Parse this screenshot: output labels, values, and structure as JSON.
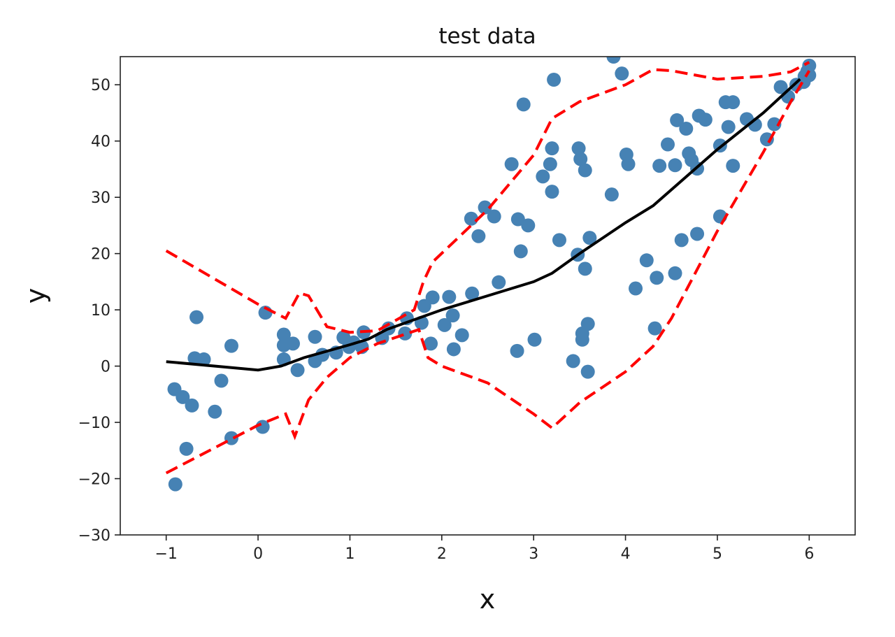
{
  "chart_data": {
    "type": "scatter",
    "title": "test data",
    "xlabel": "x",
    "ylabel": "y",
    "xlim": [
      -1.5,
      6.5
    ],
    "ylim": [
      -30,
      55
    ],
    "xticks": [
      -1,
      0,
      1,
      2,
      3,
      4,
      5,
      6
    ],
    "yticks": [
      -30,
      -20,
      -10,
      0,
      10,
      20,
      30,
      40,
      50
    ],
    "xtick_labels": [
      "−1",
      "0",
      "1",
      "2",
      "3",
      "4",
      "5",
      "6"
    ],
    "ytick_labels": [
      "−30",
      "−20",
      "−10",
      "0",
      "10",
      "20",
      "30",
      "40",
      "50"
    ],
    "grid": false,
    "colors": {
      "points": "#4682b4",
      "fit": "#000000",
      "bounds": "#ff0000"
    },
    "points": [
      [
        -0.9,
        -21.0
      ],
      [
        -0.91,
        -4.1
      ],
      [
        -0.82,
        -5.5
      ],
      [
        -0.72,
        -7.0
      ],
      [
        -0.78,
        -14.7
      ],
      [
        -0.67,
        8.7
      ],
      [
        -0.69,
        1.4
      ],
      [
        -0.59,
        1.2
      ],
      [
        -0.47,
        -8.1
      ],
      [
        -0.4,
        -2.6
      ],
      [
        -0.29,
        3.6
      ],
      [
        -0.29,
        -12.8
      ],
      [
        0.05,
        -10.8
      ],
      [
        0.08,
        9.5
      ],
      [
        0.28,
        5.6
      ],
      [
        0.28,
        3.7
      ],
      [
        0.38,
        4.0
      ],
      [
        0.28,
        1.2
      ],
      [
        0.43,
        -0.7
      ],
      [
        0.62,
        5.2
      ],
      [
        0.62,
        0.9
      ],
      [
        0.7,
        2.0
      ],
      [
        0.85,
        2.4
      ],
      [
        0.93,
        5.1
      ],
      [
        0.99,
        3.4
      ],
      [
        1.04,
        4.2
      ],
      [
        1.13,
        3.4
      ],
      [
        1.15,
        6.0
      ],
      [
        1.35,
        5.0
      ],
      [
        1.42,
        6.7
      ],
      [
        1.6,
        5.8
      ],
      [
        1.62,
        8.5
      ],
      [
        1.78,
        7.7
      ],
      [
        1.81,
        10.7
      ],
      [
        1.9,
        12.2
      ],
      [
        1.88,
        4.0
      ],
      [
        2.03,
        7.3
      ],
      [
        2.08,
        12.3
      ],
      [
        2.12,
        9.0
      ],
      [
        2.13,
        3.0
      ],
      [
        2.22,
        5.5
      ],
      [
        2.33,
        12.9
      ],
      [
        2.32,
        26.2
      ],
      [
        2.4,
        23.1
      ],
      [
        2.47,
        28.2
      ],
      [
        2.57,
        26.6
      ],
      [
        2.62,
        14.9
      ],
      [
        2.76,
        35.9
      ],
      [
        2.82,
        2.7
      ],
      [
        2.83,
        26.1
      ],
      [
        2.86,
        20.4
      ],
      [
        2.89,
        46.5
      ],
      [
        2.94,
        25.0
      ],
      [
        3.01,
        4.7
      ],
      [
        3.1,
        33.7
      ],
      [
        3.18,
        35.9
      ],
      [
        3.2,
        38.7
      ],
      [
        3.2,
        31.0
      ],
      [
        3.22,
        50.9
      ],
      [
        3.28,
        22.4
      ],
      [
        3.43,
        0.9
      ],
      [
        3.48,
        19.8
      ],
      [
        3.49,
        38.7
      ],
      [
        3.51,
        36.8
      ],
      [
        3.53,
        5.8
      ],
      [
        3.53,
        4.7
      ],
      [
        3.56,
        34.8
      ],
      [
        3.56,
        17.3
      ],
      [
        3.59,
        7.5
      ],
      [
        3.59,
        -1.0
      ],
      [
        3.61,
        22.8
      ],
      [
        3.85,
        30.5
      ],
      [
        3.87,
        55.0
      ],
      [
        3.96,
        52.0
      ],
      [
        4.01,
        37.6
      ],
      [
        4.03,
        35.9
      ],
      [
        4.11,
        13.8
      ],
      [
        4.23,
        18.8
      ],
      [
        4.32,
        6.7
      ],
      [
        4.34,
        15.7
      ],
      [
        4.37,
        35.6
      ],
      [
        4.46,
        39.4
      ],
      [
        4.54,
        16.5
      ],
      [
        4.54,
        35.7
      ],
      [
        4.56,
        43.7
      ],
      [
        4.61,
        22.4
      ],
      [
        4.66,
        42.2
      ],
      [
        4.69,
        37.8
      ],
      [
        4.72,
        36.6
      ],
      [
        4.78,
        35.1
      ],
      [
        4.78,
        23.5
      ],
      [
        4.8,
        44.5
      ],
      [
        4.87,
        43.8
      ],
      [
        5.03,
        26.6
      ],
      [
        5.03,
        39.2
      ],
      [
        5.09,
        46.9
      ],
      [
        5.17,
        46.9
      ],
      [
        5.12,
        42.5
      ],
      [
        5.17,
        35.6
      ],
      [
        5.32,
        43.9
      ],
      [
        5.41,
        42.9
      ],
      [
        5.54,
        40.3
      ],
      [
        5.62,
        43.0
      ],
      [
        5.69,
        49.6
      ],
      [
        5.77,
        47.9
      ],
      [
        5.86,
        50.0
      ],
      [
        5.94,
        50.5
      ],
      [
        5.98,
        52.4
      ],
      [
        6.0,
        53.4
      ],
      [
        5.95,
        51.5
      ],
      [
        6.0,
        51.7
      ]
    ],
    "fit_line": [
      [
        -1,
        0.8
      ],
      [
        0,
        -0.7
      ],
      [
        0.25,
        0
      ],
      [
        0.5,
        1.5
      ],
      [
        1,
        3.8
      ],
      [
        1.2,
        4.8
      ],
      [
        1.4,
        6.5
      ],
      [
        2,
        10
      ],
      [
        2.5,
        12.5
      ],
      [
        3,
        15
      ],
      [
        3.2,
        16.5
      ],
      [
        3.5,
        20
      ],
      [
        4,
        25.5
      ],
      [
        4.3,
        28.5
      ],
      [
        5,
        38.5
      ],
      [
        5.5,
        45
      ],
      [
        5.9,
        51
      ]
    ],
    "upper_bound": [
      [
        -1,
        20.5
      ],
      [
        0,
        11
      ],
      [
        0.3,
        8.5
      ],
      [
        0.45,
        13
      ],
      [
        0.55,
        12.5
      ],
      [
        0.75,
        7
      ],
      [
        1,
        6
      ],
      [
        1.3,
        6.3
      ],
      [
        1.7,
        10
      ],
      [
        1.8,
        15
      ],
      [
        1.9,
        18.5
      ],
      [
        2.5,
        27.8
      ],
      [
        3,
        37.5
      ],
      [
        3.2,
        44
      ],
      [
        3.5,
        47
      ],
      [
        4,
        50
      ],
      [
        4.3,
        52.7
      ],
      [
        4.5,
        52.5
      ],
      [
        5,
        51
      ],
      [
        5.5,
        51.5
      ],
      [
        5.8,
        52.3
      ],
      [
        6,
        54
      ]
    ],
    "lower_bound": [
      [
        -1,
        -19
      ],
      [
        0,
        -10.5
      ],
      [
        0.3,
        -8.5
      ],
      [
        0.4,
        -12.5
      ],
      [
        0.55,
        -6
      ],
      [
        0.75,
        -2
      ],
      [
        1,
        1.5
      ],
      [
        1.3,
        4
      ],
      [
        1.75,
        6.5
      ],
      [
        1.85,
        1.5
      ],
      [
        2,
        0
      ],
      [
        2.5,
        -3
      ],
      [
        3,
        -8.5
      ],
      [
        3.2,
        -11
      ],
      [
        3.5,
        -6.5
      ],
      [
        4,
        -1
      ],
      [
        4.3,
        3.5
      ],
      [
        4.5,
        8.5
      ],
      [
        5,
        24
      ],
      [
        5.5,
        38
      ],
      [
        5.8,
        47
      ],
      [
        6,
        52.5
      ]
    ]
  }
}
